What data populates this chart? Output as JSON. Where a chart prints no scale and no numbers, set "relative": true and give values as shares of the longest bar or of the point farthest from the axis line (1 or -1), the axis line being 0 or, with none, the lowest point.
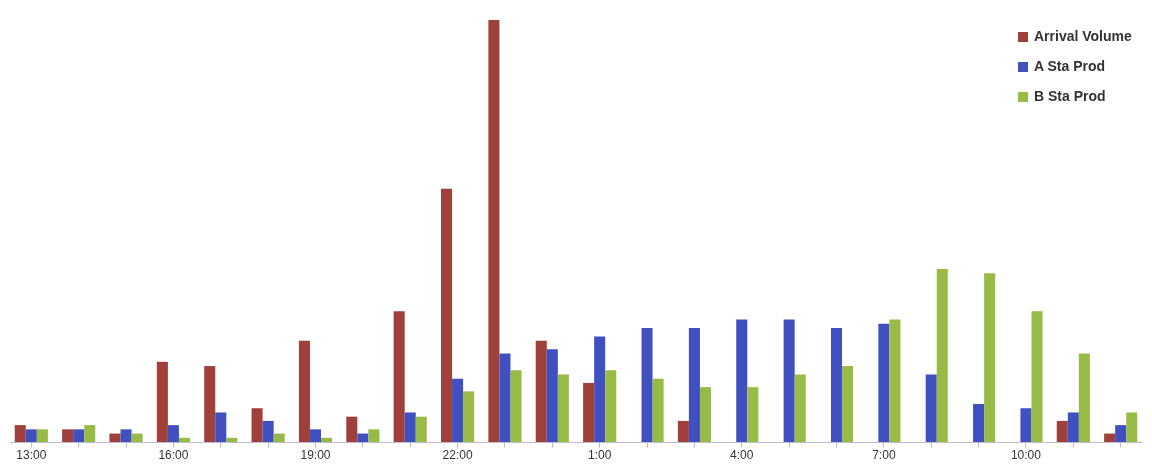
{
  "chart_data": {
    "type": "bar",
    "relative": true,
    "legend": "top right",
    "grid": false,
    "categories": [
      "13:00",
      null,
      null,
      "16:00",
      null,
      null,
      "19:00",
      null,
      null,
      "22:00",
      null,
      null,
      "1:00",
      null,
      null,
      "4:00",
      null,
      null,
      "7:00",
      null,
      null,
      "10:00",
      null,
      null
    ],
    "series": [
      {
        "name": "Arrival Volume",
        "color": "#a0403a",
        "values": [
          0.04,
          0.03,
          0.02,
          0.19,
          0.18,
          0.08,
          0.24,
          0.06,
          0.31,
          0.6,
          1,
          0.24,
          0.14,
          0,
          0.05,
          0,
          0,
          0,
          0,
          0,
          0,
          0,
          0.05,
          0.02
        ]
      },
      {
        "name": "A Sta Prod",
        "color": "#4050c0",
        "values": [
          0.03,
          0.03,
          0.03,
          0.04,
          0.07,
          0.05,
          0.03,
          0.02,
          0.07,
          0.15,
          0.21,
          0.22,
          0.25,
          0.27,
          0.27,
          0.29,
          0.29,
          0.27,
          0.28,
          0.16,
          0.09,
          0.08,
          0.07,
          0.04
        ]
      },
      {
        "name": "B Sta Prod",
        "color": "#98bb48",
        "values": [
          0.03,
          0.04,
          0.02,
          0.01,
          0.01,
          0.02,
          0.01,
          0.03,
          0.06,
          0.12,
          0.17,
          0.16,
          0.17,
          0.15,
          0.13,
          0.13,
          0.16,
          0.18,
          0.29,
          0.41,
          0.4,
          0.31,
          0.21,
          0.07
        ]
      }
    ]
  }
}
